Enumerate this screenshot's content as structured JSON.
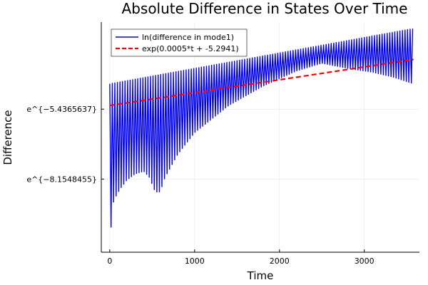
{
  "chart_data": {
    "type": "line",
    "title": "Absolute Difference in States Over Time",
    "xlabel": "Time",
    "ylabel": "Difference",
    "xlim": [
      -100,
      3650
    ],
    "ylim": [
      -11.0,
      -2.05
    ],
    "x_ticks": [
      0,
      1000,
      2000,
      3000
    ],
    "x_tick_labels": [
      "0",
      "1000",
      "2000",
      "3000"
    ],
    "y_ticks": [
      -5.4365637,
      -8.1548455
    ],
    "y_tick_labels": [
      "e^{−5.4365637}",
      "e^{−8.1548455}"
    ],
    "grid": true,
    "legend_position": "top-left",
    "series": [
      {
        "name": "ln(difference in mode1)",
        "color": "#0000ff",
        "style": "solid",
        "oscillating": true,
        "period": 30,
        "upper_envelope": {
          "x": [
            0,
            3580
          ],
          "y": [
            -4.45,
            -2.3
          ]
        },
        "lower_envelope": {
          "x": [
            0,
            30,
            60,
            120,
            200,
            300,
            400,
            470,
            520,
            570,
            600,
            650,
            800,
            1000,
            1400,
            1800,
            2200,
            2500,
            2800,
            3100,
            3350,
            3580
          ],
          "y": [
            -10.85,
            -9.2,
            -8.9,
            -8.55,
            -8.2,
            -7.95,
            -7.85,
            -8.1,
            -8.55,
            -8.7,
            -8.6,
            -8.1,
            -7.2,
            -6.35,
            -5.3,
            -4.55,
            -3.95,
            -3.65,
            -3.85,
            -4.0,
            -4.2,
            -4.45
          ]
        }
      },
      {
        "name": "exp(0.0005*t + -5.2941)",
        "color": "#ff0000",
        "style": "dashed",
        "x": [
          0,
          3580
        ],
        "y": [
          -5.2941,
          -3.5041
        ]
      }
    ]
  }
}
